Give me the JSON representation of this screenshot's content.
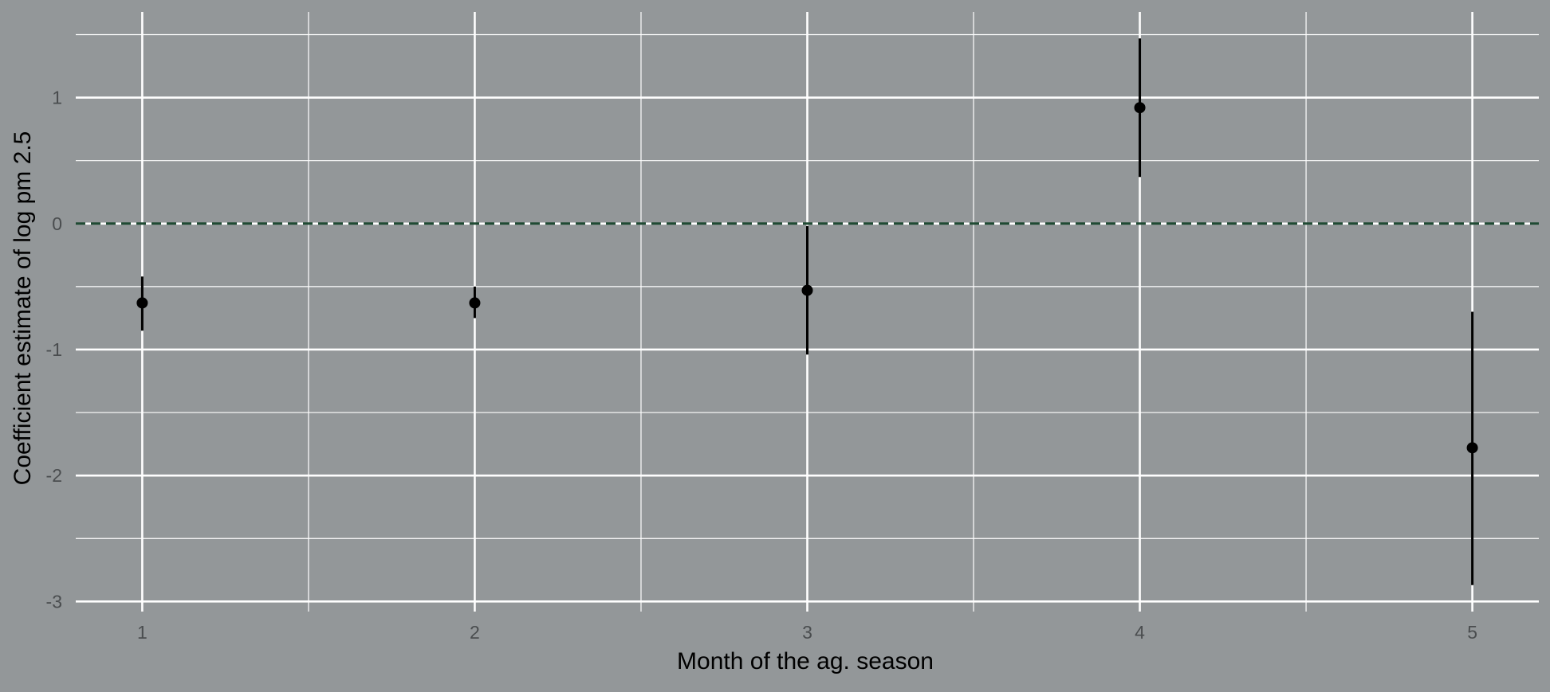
{
  "chart_data": {
    "type": "scatter",
    "title": "",
    "xlabel": "Month of the ag. season",
    "ylabel": "Coefficient estimate of log pm 2.5",
    "x_ticks": [
      "1",
      "2",
      "3",
      "4",
      "5"
    ],
    "y_ticks": [
      "-3",
      "-2",
      "-1",
      "0",
      "1"
    ],
    "xlim": [
      0.8,
      5.2
    ],
    "ylim": [
      -3.08,
      1.68
    ],
    "grid": true,
    "legend": "none",
    "reference_line": {
      "y": 0,
      "style": "dashed",
      "color": "#1f4a33"
    },
    "points": [
      {
        "x": 1,
        "y": -0.63,
        "lower": -0.85,
        "upper": -0.42
      },
      {
        "x": 2,
        "y": -0.63,
        "lower": -0.75,
        "upper": -0.5
      },
      {
        "x": 3,
        "y": -0.53,
        "lower": -1.04,
        "upper": -0.02
      },
      {
        "x": 4,
        "y": 0.92,
        "lower": 0.37,
        "upper": 1.47
      },
      {
        "x": 5,
        "y": -1.78,
        "lower": -2.87,
        "upper": -0.7
      }
    ],
    "colors": {
      "background": "#939799",
      "grid": "#ffffff",
      "point": "#000000"
    }
  }
}
